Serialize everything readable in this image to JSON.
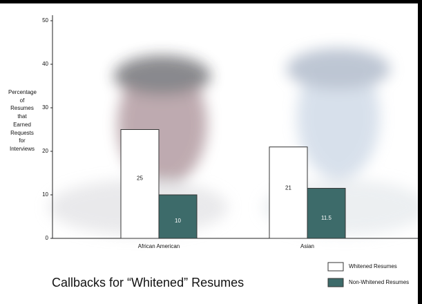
{
  "chart_data": {
    "type": "bar",
    "title": "Callbacks for “Whitened” Resumes",
    "y_label": "Percentage of Resumes that Earned Requests for Interviews",
    "categories": [
      "African American",
      "Asian"
    ],
    "series": [
      {
        "name": "Whitened Resumes",
        "color": "#ffffff",
        "values": [
          25,
          21
        ]
      },
      {
        "name": "Non-Whitened Resumes",
        "color": "#3d6b6a",
        "values": [
          10,
          11.5
        ]
      }
    ],
    "ylim": [
      0,
      50
    ],
    "yticks": [
      0,
      10,
      20,
      30,
      40,
      50
    ]
  }
}
